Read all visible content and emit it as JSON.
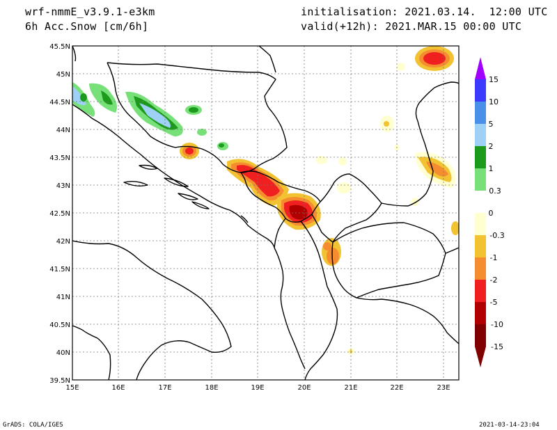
{
  "header": {
    "model": "wrf-nmmE_v3.9.1-e3km",
    "field": "6h Acc.Snow [cm/6h]",
    "init": "initialisation: 2021.03.14.  12:00 UTC",
    "valid": "valid(+12h): 2021.MAR.15 00:00 UTC"
  },
  "axes": {
    "lat_labels": [
      "45.5N",
      "45N",
      "44.5N",
      "44N",
      "43.5N",
      "43N",
      "42.5N",
      "42N",
      "41.5N",
      "41N",
      "40.5N",
      "40N",
      "39.5N"
    ],
    "lon_labels": [
      "15E",
      "16E",
      "17E",
      "18E",
      "19E",
      "20E",
      "21E",
      "22E",
      "23E"
    ]
  },
  "legend": {
    "labels": [
      "15",
      "10",
      "5",
      "2",
      "1",
      "0.3",
      "0",
      "-0.3",
      "-1",
      "-2",
      "-5",
      "-10",
      "-15"
    ],
    "colors": [
      "#a000ff",
      "#3b3bff",
      "#4a90e8",
      "#9fd0f5",
      "#1b9a1b",
      "#78e078",
      "#ffffff",
      "#ffffd0",
      "#f2c232",
      "#f58c30",
      "#f02020",
      "#b00000",
      "#800000"
    ]
  },
  "footer": {
    "left": "GrADS: COLA/IGES",
    "right": "2021-03-14-23:04"
  }
}
